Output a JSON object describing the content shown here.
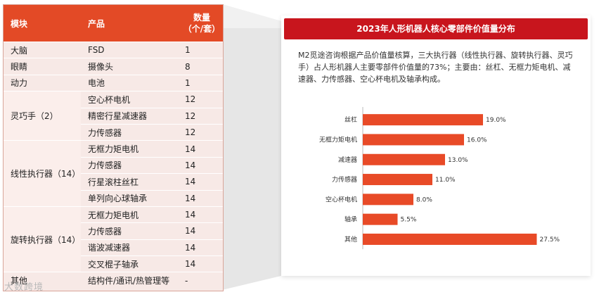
{
  "table": {
    "headers": [
      "模块",
      "产品",
      "数量\n（个/套）"
    ],
    "header_qty_line1": "数量",
    "header_qty_line2": "（个/套）",
    "rows": [
      {
        "module": "大脑",
        "product": "FSD",
        "qty": "1"
      },
      {
        "module": "眼睛",
        "product": "摄像头",
        "qty": "8"
      },
      {
        "module": "动力",
        "product": "电池",
        "qty": "1"
      }
    ],
    "groups": [
      {
        "module": "灵巧手（2）",
        "items": [
          {
            "product": "空心杯电机",
            "qty": "12"
          },
          {
            "product": "精密行星减速器",
            "qty": "12"
          },
          {
            "product": "力传感器",
            "qty": "12"
          }
        ]
      },
      {
        "module": "线性执行器（14）",
        "items": [
          {
            "product": "无框力矩电机",
            "qty": "14"
          },
          {
            "product": "力传感器",
            "qty": "14"
          },
          {
            "product": "行星滚柱丝杠",
            "qty": "14"
          },
          {
            "product": "单列向心球轴承",
            "qty": "14"
          }
        ]
      },
      {
        "module": "旋转执行器（14）",
        "items": [
          {
            "product": "无框力矩电机",
            "qty": "14"
          },
          {
            "product": "力传感器",
            "qty": "14"
          },
          {
            "product": "谐波减速器",
            "qty": "14"
          },
          {
            "product": "交叉棍子轴承",
            "qty": "14"
          }
        ]
      }
    ],
    "last_row": {
      "module": "其他",
      "product": "结构件/通讯/热管理等",
      "qty": "-"
    }
  },
  "card": {
    "title": "2023年人形机器人核心零部件价值量分布",
    "description": "M2觅途咨询根据产品价值量核算，三大执行器（线性执行器、旋转执行器、灵巧手）占人形机器人主要零部件价值量的73%；主要由：丝杠、无框力矩电机、减速器、力传感器、空心杯电机及轴承构成。"
  },
  "chart_data": {
    "type": "bar",
    "orientation": "horizontal",
    "title": "2023年人形机器人核心零部件价值量分布",
    "categories": [
      "丝杠",
      "无框力矩电机",
      "减速器",
      "力传感器",
      "空心杯电机",
      "轴承",
      "其他"
    ],
    "values": [
      19.0,
      16.0,
      13.0,
      11.0,
      8.0,
      5.5,
      27.5
    ],
    "value_labels": [
      "19.0%",
      "16.0%",
      "13.0%",
      "11.0%",
      "8.0%",
      "5.5%",
      "27.5%"
    ],
    "xlim": [
      0,
      30
    ],
    "bar_color": "#e84a27",
    "grid": false,
    "xlabel": "",
    "ylabel": ""
  },
  "colors": {
    "header_red": "#e34a26",
    "title_red": "#c8151d",
    "row_pink": "#f7e9e6"
  },
  "watermark": "大数跨境"
}
